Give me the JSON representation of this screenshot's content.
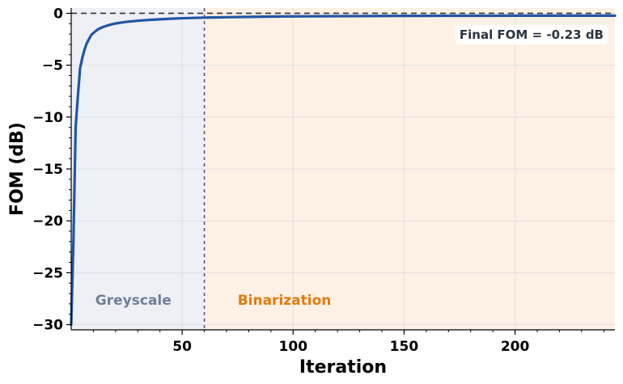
{
  "chart_data": {
    "type": "line",
    "title": "",
    "xlabel": "Iteration",
    "ylabel": "FOM (dB)",
    "xlim": [
      0,
      245
    ],
    "ylim": [
      -30.5,
      0.5
    ],
    "x_ticks": [
      50,
      100,
      150,
      200
    ],
    "y_ticks": [
      0,
      -5,
      -10,
      -15,
      -20,
      -25,
      -30
    ],
    "x_tick_labels": [
      "50",
      "100",
      "150",
      "200"
    ],
    "y_tick_labels": [
      "0",
      "−5",
      "−10",
      "−15",
      "−20",
      "−25",
      "−30"
    ],
    "grid": true,
    "reference_line": {
      "y": 0,
      "style": "dashed",
      "color": "#333333"
    },
    "phase_boundary": {
      "x": 60,
      "style": "dashed",
      "color": "#4a5260"
    },
    "regions": [
      {
        "label": "Greyscale",
        "x_start": 0,
        "x_end": 60,
        "fill": "#eef0f5",
        "text_color": "#6f7f96"
      },
      {
        "label": "Binarization",
        "x_start": 60,
        "x_end": 245,
        "fill": "#fdf0e4",
        "text_color": "#e07b10"
      }
    ],
    "annotation": "Final FOM = -0.23 dB",
    "series": [
      {
        "color": "#2156a3",
        "x": [
          0,
          1,
          2,
          3,
          4,
          5,
          6,
          7,
          8,
          9,
          10,
          12,
          14,
          16,
          18,
          20,
          25,
          30,
          35,
          40,
          45,
          50,
          55,
          60,
          70,
          80,
          90,
          100,
          110,
          120,
          130,
          140,
          150,
          160,
          170,
          180,
          190,
          200,
          210,
          220,
          230,
          240,
          245
        ],
        "y": [
          -30,
          -22,
          -11,
          -8,
          -5.3,
          -4.3,
          -3.5,
          -2.9,
          -2.5,
          -2.1,
          -1.9,
          -1.55,
          -1.35,
          -1.2,
          -1.08,
          -0.98,
          -0.82,
          -0.72,
          -0.64,
          -0.58,
          -0.52,
          -0.48,
          -0.45,
          -0.42,
          -0.38,
          -0.35,
          -0.32,
          -0.3,
          -0.29,
          -0.28,
          -0.27,
          -0.26,
          -0.25,
          -0.25,
          -0.24,
          -0.24,
          -0.24,
          -0.23,
          -0.23,
          -0.23,
          -0.23,
          -0.23,
          -0.23
        ]
      }
    ]
  }
}
